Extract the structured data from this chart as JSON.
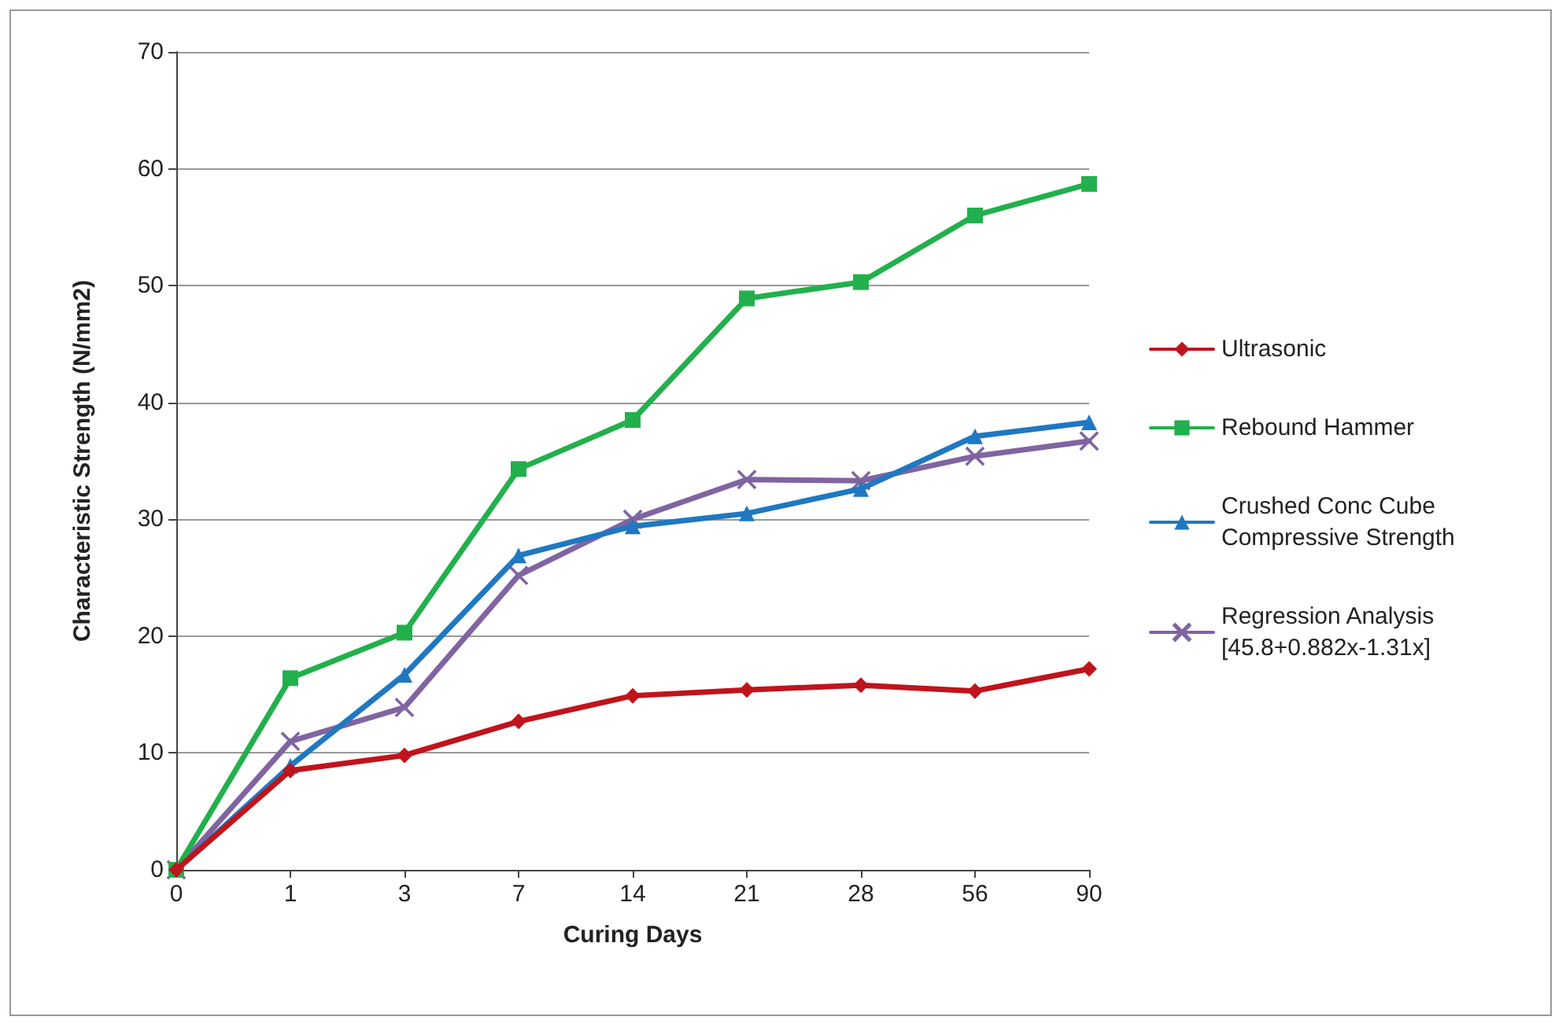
{
  "chart_data": {
    "type": "line",
    "xlabel": "Curing Days",
    "ylabel": "Characteristic Strength (N/mm2)",
    "categories": [
      "0",
      "1",
      "3",
      "7",
      "14",
      "21",
      "28",
      "56",
      "90"
    ],
    "ylim": [
      0,
      70
    ],
    "yticks": [
      0,
      10,
      20,
      30,
      40,
      50,
      60,
      70
    ],
    "grid": "y",
    "legend": "right",
    "series": [
      {
        "name": "Ultrasonic",
        "color": "#c0141c",
        "marker": "diamond",
        "values": [
          0,
          8.5,
          9.8,
          12.7,
          14.9,
          15.4,
          15.8,
          15.3,
          17.2
        ]
      },
      {
        "name": "Rebound Hammer",
        "color": "#22b04c",
        "marker": "square",
        "values": [
          0,
          16.4,
          20.3,
          34.3,
          38.5,
          48.9,
          50.3,
          56,
          58.7
        ]
      },
      {
        "name": "Crushed Conc Cube Compressive Strength",
        "color": "#1f78c1",
        "marker": "triangle",
        "values": [
          0,
          8.9,
          16.7,
          26.9,
          29.4,
          30.5,
          32.6,
          37.1,
          38.3
        ]
      },
      {
        "name": "Regression Analysis [45.8+0.882x-1.31x]",
        "color": "#8064a2",
        "marker": "cross",
        "values": [
          0,
          11,
          13.9,
          25.2,
          30,
          33.4,
          33.3,
          35.4,
          36.7
        ]
      }
    ]
  }
}
